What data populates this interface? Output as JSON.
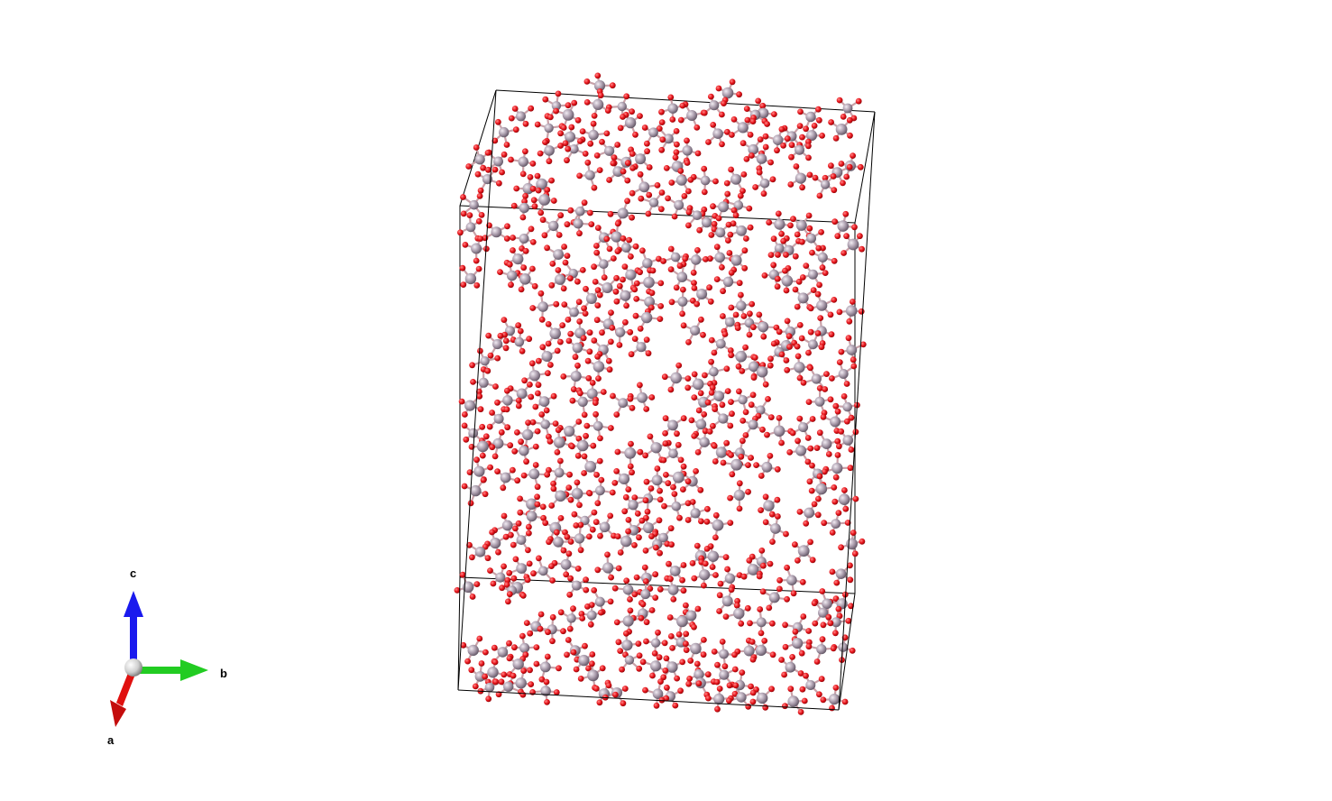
{
  "scene": {
    "background": "#ffffff",
    "cell_line_color": "#000000",
    "atom_colors": {
      "oxygen": "#e8141b",
      "silicon": "#a89aaa"
    },
    "bond_color": "#b6a9b8"
  },
  "axes": {
    "a": {
      "label": "a",
      "color": "#e0100f"
    },
    "b": {
      "label": "b",
      "color": "#22cc22"
    },
    "c": {
      "label": "c",
      "color": "#1a1aee"
    },
    "origin_color": "#cfcfcf"
  }
}
